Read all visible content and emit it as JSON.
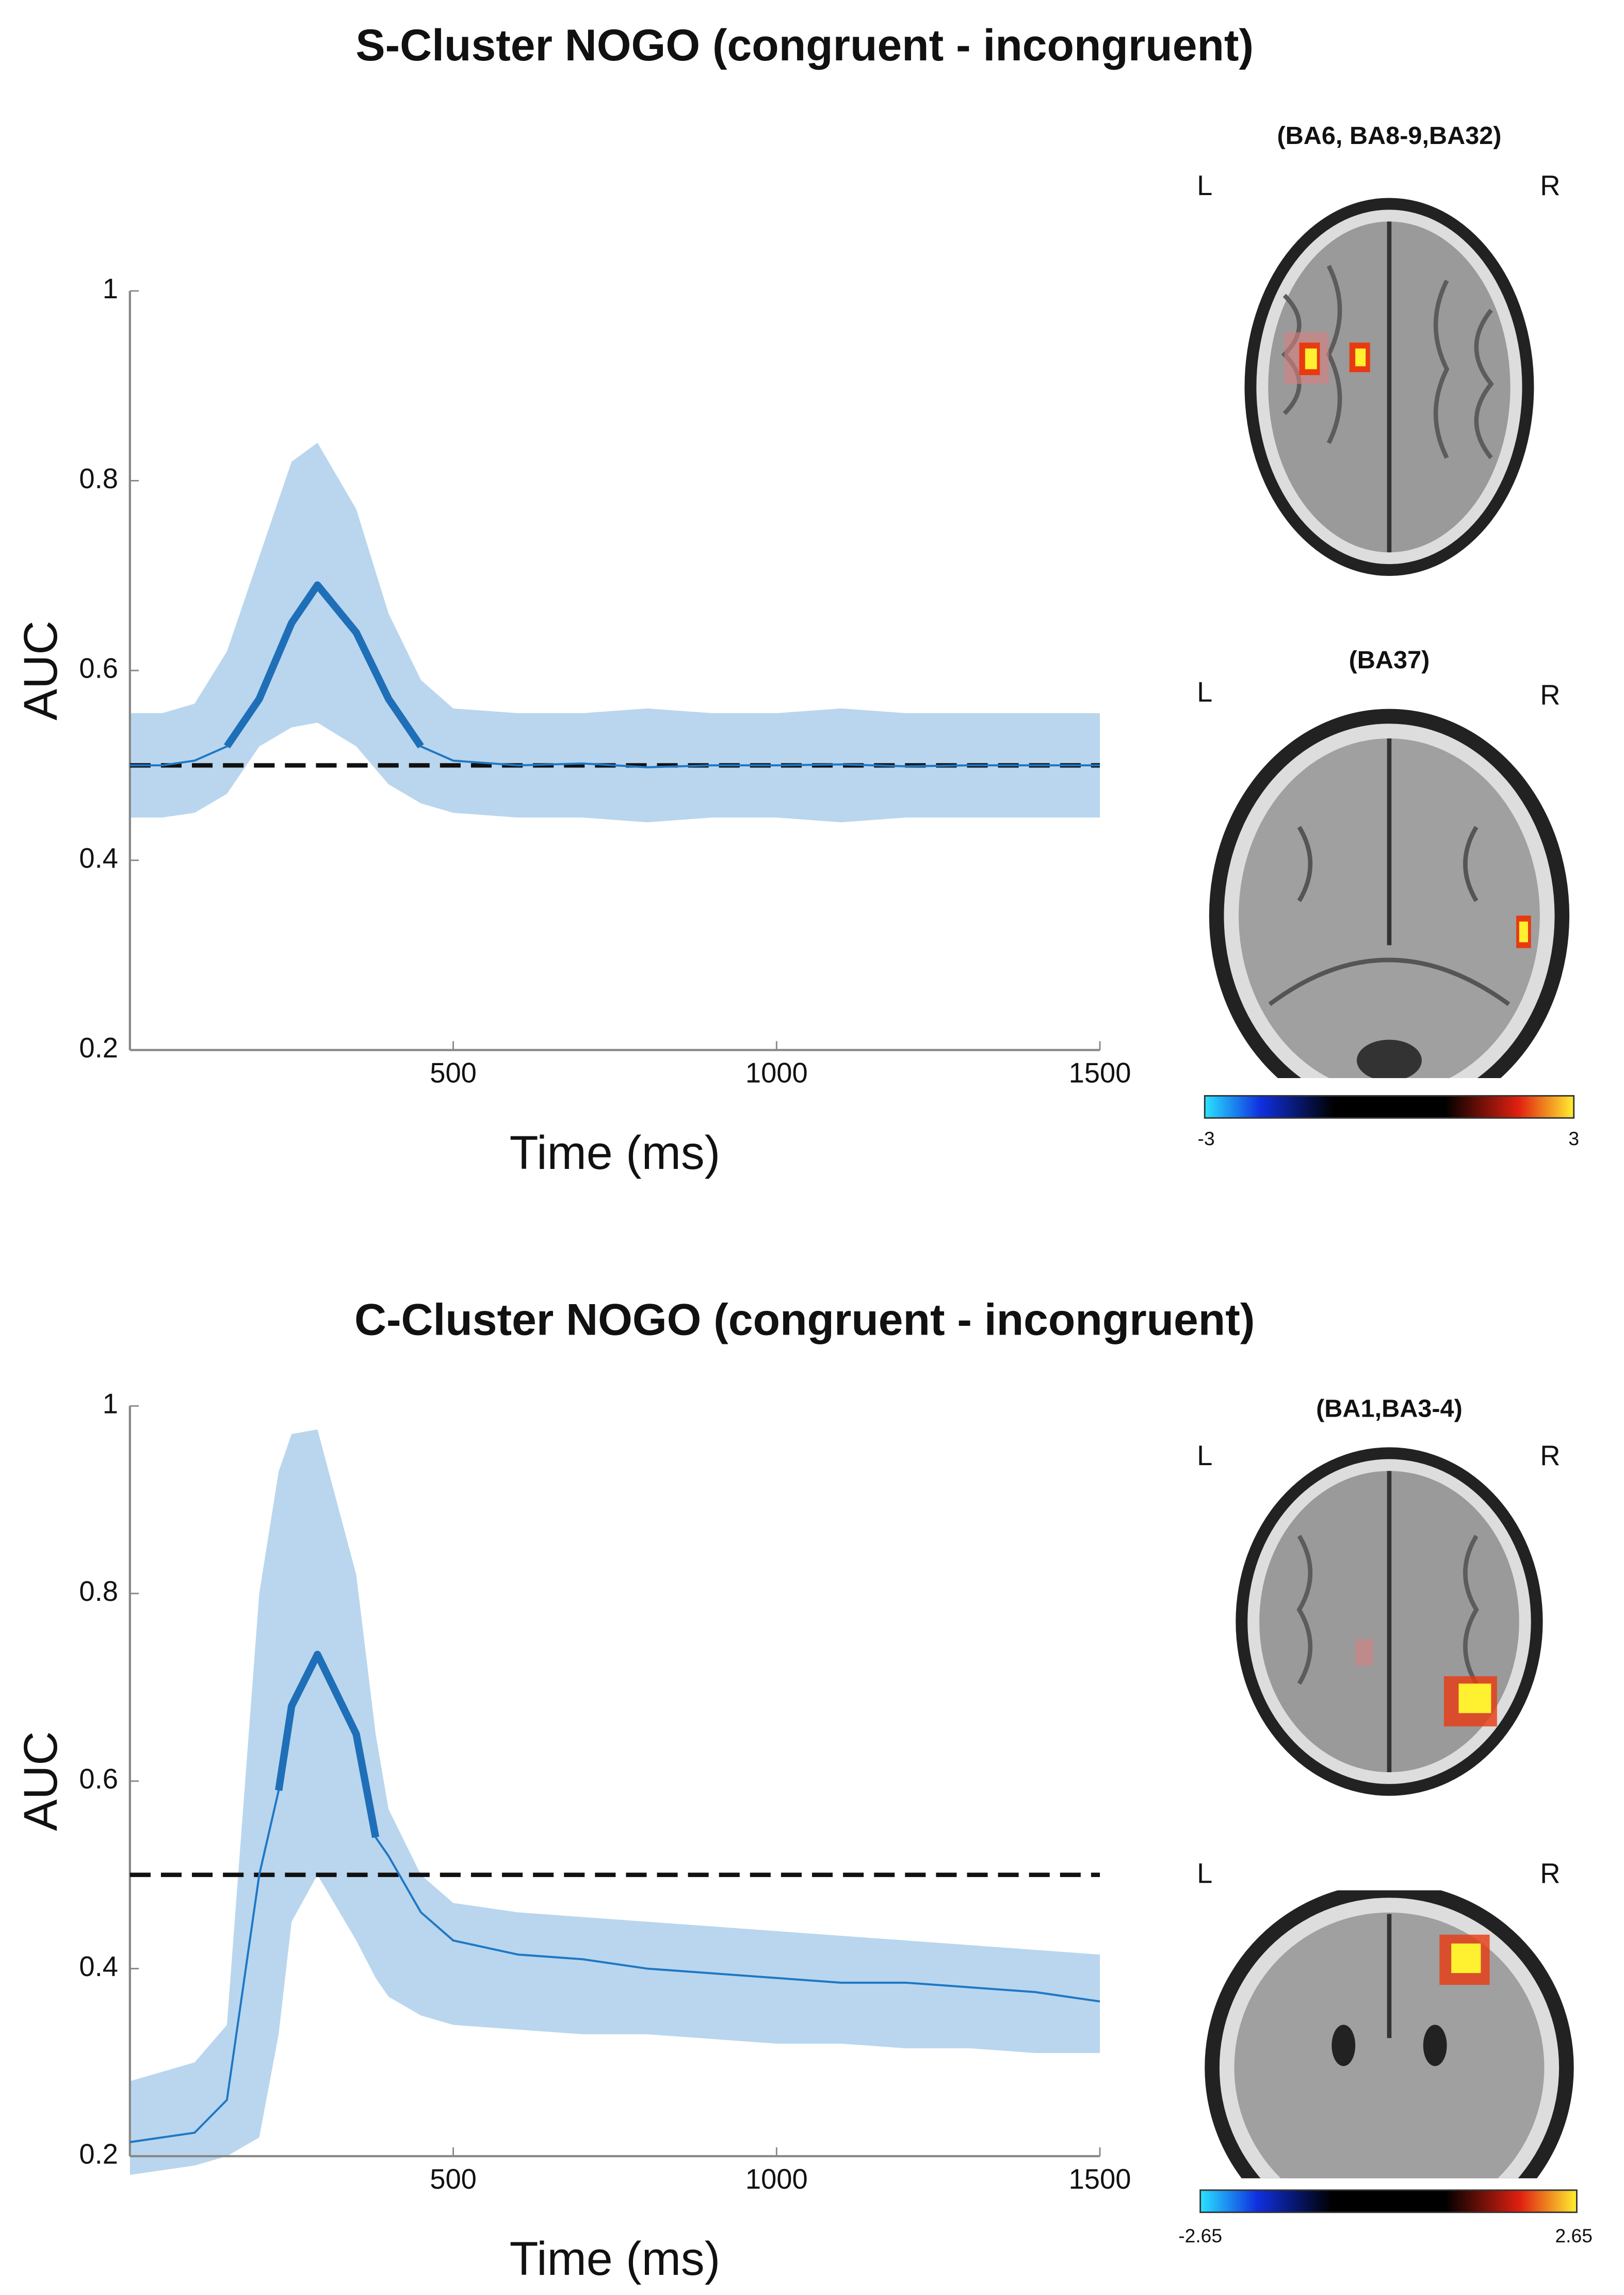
{
  "chart_data": [
    {
      "type": "line",
      "title": "S-Cluster NOGO (congruent - incongruent)",
      "xlabel": "Time (ms)",
      "ylabel": "AUC",
      "x": [
        0,
        50,
        100,
        150,
        200,
        250,
        290,
        350,
        400,
        450,
        500,
        600,
        700,
        800,
        900,
        1000,
        1100,
        1200,
        1300,
        1400,
        1500
      ],
      "series": [
        {
          "color": "#1f77c4",
          "values": [
            0.5,
            0.5,
            0.505,
            0.52,
            0.57,
            0.65,
            0.69,
            0.64,
            0.57,
            0.52,
            0.505,
            0.5,
            0.502,
            0.498,
            0.5,
            0.5,
            0.501,
            0.499,
            0.5,
            0.5,
            0.5
          ]
        },
        {
          "color": "#1f6fb8",
          "values": [
            null,
            null,
            null,
            0.52,
            0.57,
            0.65,
            0.69,
            0.64,
            0.57,
            0.52,
            null,
            null,
            null,
            null,
            null,
            null,
            null,
            null,
            null,
            null,
            null
          ]
        }
      ],
      "band": {
        "color": "#b9d6ee",
        "upper": [
          0.555,
          0.555,
          0.565,
          0.62,
          0.72,
          0.82,
          0.84,
          0.77,
          0.66,
          0.59,
          0.56,
          0.555,
          0.555,
          0.56,
          0.555,
          0.555,
          0.56,
          0.555,
          0.555,
          0.555,
          0.555
        ],
        "lower": [
          0.445,
          0.445,
          0.45,
          0.47,
          0.52,
          0.54,
          0.545,
          0.52,
          0.48,
          0.46,
          0.45,
          0.445,
          0.445,
          0.44,
          0.445,
          0.445,
          0.44,
          0.445,
          0.445,
          0.445,
          0.445
        ]
      },
      "reference_line": 0.5,
      "xlim": [
        0,
        1500
      ],
      "xticks": [
        500,
        1000,
        1500
      ],
      "ylim": [
        0.2,
        1
      ],
      "yticks": [
        0.2,
        0.4,
        0.6,
        0.8,
        1
      ]
    },
    {
      "type": "line",
      "title": "C-Cluster NOGO (congruent - incongruent)",
      "xlabel": "Time (ms)",
      "ylabel": "AUC",
      "x": [
        0,
        50,
        100,
        150,
        200,
        230,
        250,
        290,
        350,
        380,
        400,
        450,
        500,
        600,
        700,
        800,
        900,
        1000,
        1100,
        1200,
        1300,
        1400,
        1500
      ],
      "series": [
        {
          "color": "#1f77c4",
          "values": [
            0.215,
            0.22,
            0.225,
            0.26,
            0.5,
            0.59,
            0.68,
            0.735,
            0.65,
            0.54,
            0.52,
            0.46,
            0.43,
            0.415,
            0.41,
            0.4,
            0.395,
            0.39,
            0.385,
            0.385,
            0.38,
            0.375,
            0.365
          ]
        },
        {
          "color": "#1f6fb8",
          "values": [
            null,
            null,
            null,
            null,
            null,
            0.59,
            0.68,
            0.735,
            0.65,
            0.54,
            null,
            null,
            null,
            null,
            null,
            null,
            null,
            null,
            null,
            null,
            null,
            null,
            null
          ]
        }
      ],
      "band": {
        "color": "#b9d6ee",
        "upper": [
          0.28,
          0.29,
          0.3,
          0.34,
          0.8,
          0.93,
          0.97,
          0.975,
          0.82,
          0.65,
          0.57,
          0.5,
          0.47,
          0.46,
          0.455,
          0.45,
          0.445,
          0.44,
          0.435,
          0.43,
          0.425,
          0.42,
          0.415
        ],
        "lower": [
          0.18,
          0.185,
          0.19,
          0.2,
          0.22,
          0.33,
          0.45,
          0.5,
          0.43,
          0.39,
          0.37,
          0.35,
          0.34,
          0.335,
          0.33,
          0.33,
          0.325,
          0.32,
          0.32,
          0.315,
          0.315,
          0.31,
          0.31
        ]
      },
      "reference_line": 0.5,
      "xlim": [
        0,
        1500
      ],
      "xticks": [
        500,
        1000,
        1500
      ],
      "ylim": [
        0.2,
        1
      ],
      "yticks": [
        0.2,
        0.4,
        0.6,
        0.8,
        1
      ]
    }
  ],
  "panels": [
    {
      "brains": [
        {
          "label": "(BA6, BA8-9,BA32)",
          "left": "L",
          "right": "R"
        },
        {
          "label": "(BA37)",
          "left": "L",
          "right": "R"
        }
      ],
      "colorbar": {
        "min": -3,
        "max": 3
      }
    },
    {
      "brains": [
        {
          "label": "(BA1,BA3-4)",
          "left": "L",
          "right": "R"
        },
        {
          "left": "L",
          "right": "R"
        }
      ],
      "colorbar": {
        "min": -2.65,
        "max": 2.65
      }
    }
  ]
}
